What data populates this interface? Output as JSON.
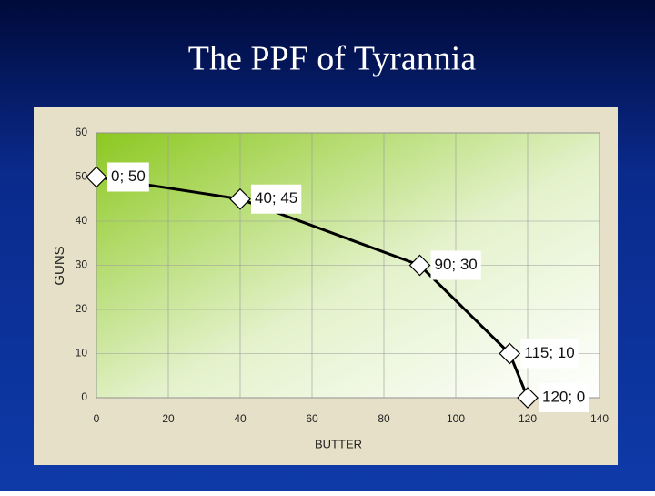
{
  "chart_data": {
    "type": "line",
    "title": "The PPF of Tyrannia",
    "x_label": "BUTTER",
    "y_label": "GUNS",
    "x": [
      0,
      40,
      90,
      115,
      120
    ],
    "series": [
      {
        "color": "#000000",
        "values": [
          50,
          45,
          30,
          10,
          0
        ],
        "value_labels": [
          "0; 50",
          "40; 45",
          "90; 30",
          "115; 10",
          "120; 0"
        ]
      }
    ],
    "xlim": [
      0,
      140
    ],
    "xticks": [
      0,
      20,
      40,
      60,
      80,
      100,
      120,
      140
    ],
    "ylim": [
      0,
      60
    ],
    "yticks": [
      0,
      10,
      20,
      30,
      40,
      50,
      60
    ],
    "grid": true
  }
}
